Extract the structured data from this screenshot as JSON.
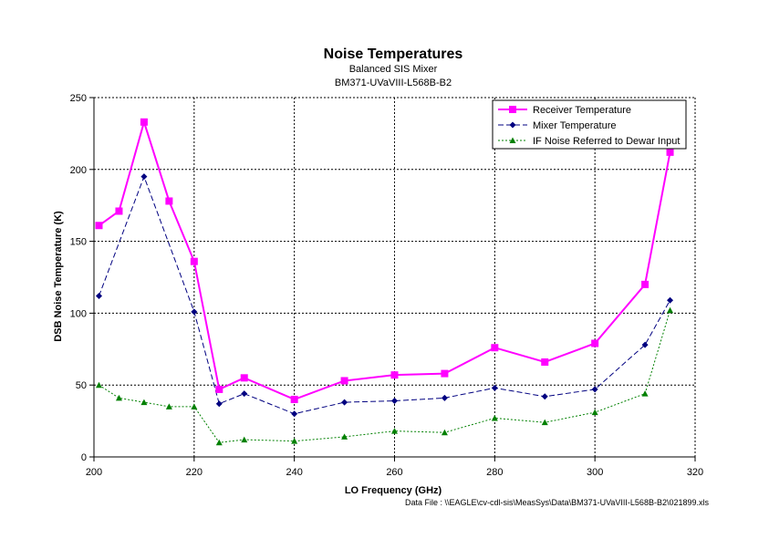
{
  "chart_data": {
    "type": "line",
    "title": "Noise Temperatures",
    "subtitle_lines": [
      "Balanced SIS Mixer",
      "BM371-UVaVIII-L568B-B2"
    ],
    "xlabel": "LO Frequency (GHz)",
    "ylabel": "DSB Noise Temperature  (K)",
    "xlim": [
      200,
      320
    ],
    "ylim": [
      0,
      250
    ],
    "xticks": [
      "200",
      "220",
      "240",
      "260",
      "280",
      "300",
      "320"
    ],
    "yticks": [
      "0",
      "50",
      "100",
      "150",
      "200",
      "250"
    ],
    "grid": true,
    "legend_position": "top-right",
    "series": [
      {
        "name": "Receiver Temperature",
        "color": "#ff00ff",
        "line": "solid",
        "marker": "square",
        "x": [
          201,
          205,
          210,
          215,
          220,
          225,
          230,
          240,
          250,
          260,
          270,
          280,
          290,
          300,
          310,
          315
        ],
        "y": [
          161,
          171,
          233,
          178,
          136,
          47,
          55,
          40,
          53,
          57,
          58,
          76,
          66,
          79,
          120,
          212
        ]
      },
      {
        "name": "Mixer Temperature",
        "color": "#000080",
        "line": "dashed",
        "marker": "diamond",
        "x": [
          201,
          210,
          220,
          225,
          230,
          240,
          250,
          260,
          270,
          280,
          290,
          300,
          310,
          315
        ],
        "y": [
          112,
          195,
          101,
          37,
          44,
          30,
          38,
          39,
          41,
          48,
          42,
          47,
          78,
          109
        ]
      },
      {
        "name": "IF Noise Referred to Dewar Input",
        "color": "#008000",
        "line": "dotted",
        "marker": "triangle",
        "x": [
          201,
          205,
          210,
          215,
          220,
          225,
          230,
          240,
          250,
          260,
          270,
          280,
          290,
          300,
          310,
          315
        ],
        "y": [
          50,
          41,
          38,
          35,
          35,
          10,
          12,
          11,
          14,
          18,
          17,
          27,
          24,
          31,
          44,
          102
        ]
      }
    ],
    "footnote": "Data File : \\\\EAGLE\\cv-cdl-sis\\MeasSys\\Data\\BM371-UVaVIII-L568B-B2\\021899.xls"
  }
}
